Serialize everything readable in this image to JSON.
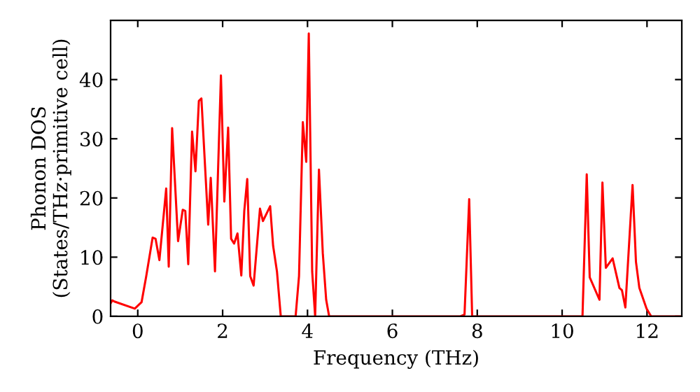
{
  "chart_data": {
    "type": "line",
    "xlabel": "Frequency (THz)",
    "ylabel": "Phonon DOS\n(States/THz·primitive cell)",
    "series": [
      {
        "color": "#ff0000",
        "x": [
          -0.64,
          -0.6,
          -0.55,
          -0.07,
          0.09,
          0.2,
          0.35,
          0.42,
          0.51,
          0.67,
          0.73,
          0.81,
          0.95,
          1.06,
          1.12,
          1.19,
          1.28,
          1.36,
          1.44,
          1.5,
          1.66,
          1.72,
          1.82,
          1.96,
          2.04,
          2.13,
          2.2,
          2.27,
          2.35,
          2.44,
          2.51,
          2.58,
          2.65,
          2.73,
          2.88,
          2.95,
          3.12,
          3.19,
          3.28,
          3.37,
          3.72,
          3.8,
          3.89,
          3.97,
          4.03,
          4.11,
          4.18,
          4.27,
          4.36,
          4.44,
          4.51,
          7.6,
          7.7,
          7.81,
          7.88,
          10.48,
          10.58,
          10.65,
          10.88,
          10.95,
          11.03,
          11.19,
          11.35,
          11.41,
          11.49,
          11.66,
          11.74,
          11.82,
          11.99,
          12.1,
          12.82
        ],
        "values": [
          2.2,
          2.7,
          2.5,
          1.3,
          2.4,
          6.8,
          13.3,
          13.1,
          9.5,
          21.6,
          8.4,
          31.8,
          12.7,
          18,
          17.8,
          8.8,
          31.2,
          24.5,
          36.4,
          36.8,
          15.5,
          23.4,
          7.6,
          40.7,
          19.4,
          31.9,
          13.1,
          12.3,
          14.0,
          6.9,
          17.8,
          23.2,
          6.8,
          5.2,
          18.2,
          16.1,
          18.6,
          11.9,
          7.6,
          0,
          0,
          6.8,
          32.8,
          26.1,
          47.8,
          7.6,
          0,
          24.8,
          10.7,
          2.8,
          0,
          0,
          0.3,
          19.8,
          0,
          0,
          24.0,
          6.6,
          2.8,
          22.6,
          8.2,
          9.8,
          4.8,
          4.4,
          1.5,
          22.2,
          9.2,
          4.8,
          1.3,
          0,
          0
        ]
      }
    ],
    "xlim": [
      -0.64,
      12.82
    ],
    "ylim": [
      0,
      50
    ],
    "xticks": [
      0,
      2,
      4,
      6,
      8,
      10,
      12
    ],
    "yticks": [
      0,
      10,
      20,
      30,
      40
    ],
    "grid": false,
    "marker": "none",
    "line_style": "solid"
  }
}
